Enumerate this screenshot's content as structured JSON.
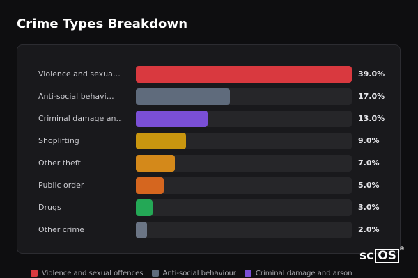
{
  "title": "Crime Types Breakdown",
  "rows": [
    {
      "label": "Violence and sexua…",
      "value_text": "39.0%"
    },
    {
      "label": "Anti-social behavi…",
      "value_text": "17.0%"
    },
    {
      "label": "Criminal damage an…",
      "value_text": "13.0%"
    },
    {
      "label": "Shoplifting",
      "value_text": "9.0%"
    },
    {
      "label": "Other theft",
      "value_text": "7.0%"
    },
    {
      "label": "Public order",
      "value_text": "5.0%"
    },
    {
      "label": "Drugs",
      "value_text": "3.0%"
    },
    {
      "label": "Other crime",
      "value_text": "2.0%"
    }
  ],
  "legend": [
    {
      "label": "Violence and sexual offences",
      "color": "#d9393f"
    },
    {
      "label": "Anti-social behaviour",
      "color": "#5f6b7c"
    },
    {
      "label": "Criminal damage and arson",
      "color": "#7a4fd6"
    }
  ],
  "chart_data": {
    "type": "bar",
    "orientation": "horizontal",
    "title": "Crime Types Breakdown",
    "categories": [
      "Violence and sexual offences",
      "Anti-social behaviour",
      "Criminal damage and arson",
      "Shoplifting",
      "Other theft",
      "Public order",
      "Drugs",
      "Other crime"
    ],
    "values": [
      39.0,
      17.0,
      13.0,
      9.0,
      7.0,
      5.0,
      3.0,
      2.0
    ],
    "colors": [
      "#d9393f",
      "#5f6b7c",
      "#7a4fd6",
      "#c9960f",
      "#d4891a",
      "#d5661f",
      "#24a856",
      "#6b7585"
    ],
    "xlim": [
      0,
      39.0
    ],
    "grid": false,
    "legend": "bottom"
  },
  "logo": {
    "prefix": "sc",
    "boxed": "OS",
    "mark": "®"
  }
}
